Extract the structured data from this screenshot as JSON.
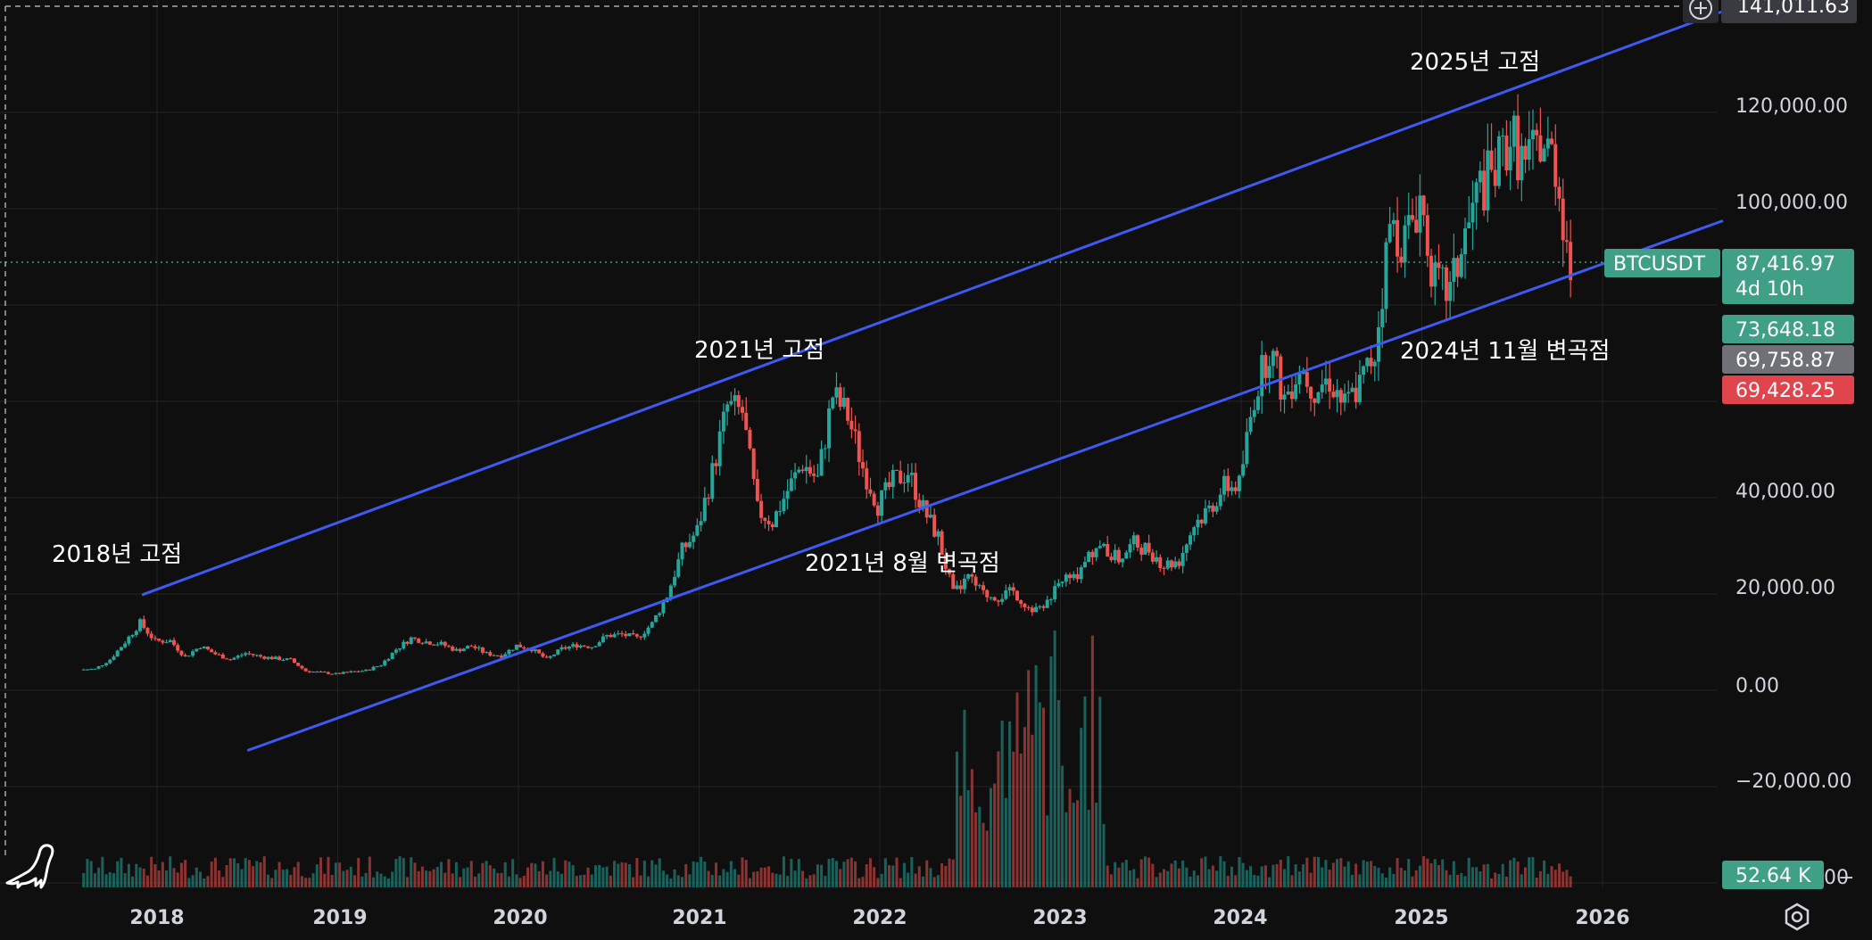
{
  "colors": {
    "background": "#0f0f0f",
    "grid": "#232323",
    "up": "#26a69a",
    "down": "#ef5350",
    "channel": "#3d5af1",
    "price_tag": "#3f9f87",
    "gray_tag": "#6f7176",
    "red_tag": "#e0444d",
    "top_tag": "#3a3b40"
  },
  "icons": {
    "logo": "dinosaur-logo-icon",
    "add": "plus-circle-icon",
    "settings": "hexagon-settings-icon"
  },
  "chart_data": {
    "type": "candlestick",
    "symbol": "BTCUSDT",
    "x_ticks": [
      "2018",
      "2019",
      "2020",
      "2021",
      "2022",
      "2023",
      "2024",
      "2025",
      "2026"
    ],
    "y_ticks": [
      "120,000.00",
      "100,000.00",
      "40,000.00",
      "20,000.00",
      "0.00",
      "−20,000.00",
      "−"
    ],
    "ylim": [
      -40000,
      141011.63
    ],
    "price_tags": {
      "top": "141,011.63",
      "last_symbol": "BTCUSDT",
      "last_price": "87,416.97",
      "countdown": "4d 10h",
      "level_1": "73,648.18",
      "level_2": "69,758.87",
      "level_3": "69,428.25",
      "volume": "52.64 K"
    },
    "annotations": [
      {
        "text": "2018년 고점",
        "date": "2017-12",
        "price": 19800
      },
      {
        "text": "2021년 고점",
        "date": "2021-04",
        "price": 64800
      },
      {
        "text": "2021년 8월 변곡점",
        "date": "2021-08",
        "price": 45000
      },
      {
        "text": "2025년 고점",
        "date": "2025-10",
        "price": 126000
      },
      {
        "text": "2024년 11월 변곡점",
        "date": "2024-11",
        "price": 73000
      }
    ],
    "channel": {
      "upper": [
        {
          "date": "2017-12",
          "price": 19800
        },
        {
          "date": "2026-09",
          "price": 141000
        }
      ],
      "lower": [
        {
          "date": "2018-07",
          "price": -12500
        },
        {
          "date": "2026-09",
          "price": 97500
        }
      ]
    },
    "price_series": [
      [
        "2017-08",
        4300
      ],
      [
        "2017-09",
        4400
      ],
      [
        "2017-10",
        6400
      ],
      [
        "2017-11",
        10000
      ],
      [
        "2017-12",
        14000
      ],
      [
        "2018-01",
        10200
      ],
      [
        "2018-02",
        10300
      ],
      [
        "2018-03",
        6900
      ],
      [
        "2018-04",
        9200
      ],
      [
        "2018-05",
        7500
      ],
      [
        "2018-06",
        6400
      ],
      [
        "2018-07",
        7700
      ],
      [
        "2018-08",
        7000
      ],
      [
        "2018-09",
        6600
      ],
      [
        "2018-10",
        6300
      ],
      [
        "2018-11",
        4000
      ],
      [
        "2018-12",
        3700
      ],
      [
        "2019-01",
        3400
      ],
      [
        "2019-02",
        3800
      ],
      [
        "2019-03",
        4100
      ],
      [
        "2019-04",
        5300
      ],
      [
        "2019-05",
        8500
      ],
      [
        "2019-06",
        10800
      ],
      [
        "2019-07",
        10100
      ],
      [
        "2019-08",
        9600
      ],
      [
        "2019-09",
        8300
      ],
      [
        "2019-10",
        9200
      ],
      [
        "2019-11",
        7600
      ],
      [
        "2019-12",
        7200
      ],
      [
        "2020-01",
        9300
      ],
      [
        "2020-02",
        8600
      ],
      [
        "2020-03",
        6400
      ],
      [
        "2020-04",
        8600
      ],
      [
        "2020-05",
        9400
      ],
      [
        "2020-06",
        9100
      ],
      [
        "2020-07",
        11300
      ],
      [
        "2020-08",
        11600
      ],
      [
        "2020-09",
        10800
      ],
      [
        "2020-10",
        13800
      ],
      [
        "2020-11",
        19700
      ],
      [
        "2020-12",
        29000
      ],
      [
        "2021-01",
        33100
      ],
      [
        "2021-02",
        45200
      ],
      [
        "2021-03",
        58900
      ],
      [
        "2021-04",
        57700
      ],
      [
        "2021-05",
        37300
      ],
      [
        "2021-06",
        35000
      ],
      [
        "2021-07",
        41500
      ],
      [
        "2021-08",
        47100
      ],
      [
        "2021-09",
        43800
      ],
      [
        "2021-10",
        61300
      ],
      [
        "2021-11",
        57000
      ],
      [
        "2021-12",
        46300
      ],
      [
        "2022-01",
        38500
      ],
      [
        "2022-02",
        43200
      ],
      [
        "2022-03",
        45500
      ],
      [
        "2022-04",
        37700
      ],
      [
        "2022-05",
        31800
      ],
      [
        "2022-06",
        19900
      ],
      [
        "2022-07",
        23300
      ],
      [
        "2022-08",
        20000
      ],
      [
        "2022-09",
        19400
      ],
      [
        "2022-10",
        20500
      ],
      [
        "2022-11",
        17200
      ],
      [
        "2022-12",
        16500
      ],
      [
        "2023-01",
        23100
      ],
      [
        "2023-02",
        23100
      ],
      [
        "2023-03",
        28500
      ],
      [
        "2023-04",
        29200
      ],
      [
        "2023-05",
        27200
      ],
      [
        "2023-06",
        30500
      ],
      [
        "2023-07",
        29200
      ],
      [
        "2023-08",
        26000
      ],
      [
        "2023-09",
        27000
      ],
      [
        "2023-10",
        34500
      ],
      [
        "2023-11",
        37700
      ],
      [
        "2023-12",
        42300
      ],
      [
        "2024-01",
        42600
      ],
      [
        "2024-02",
        61200
      ],
      [
        "2024-03",
        71300
      ],
      [
        "2024-04",
        60700
      ],
      [
        "2024-05",
        67500
      ],
      [
        "2024-06",
        62700
      ],
      [
        "2024-07",
        64600
      ],
      [
        "2024-08",
        59000
      ],
      [
        "2024-09",
        63300
      ],
      [
        "2024-10",
        70300
      ],
      [
        "2024-11",
        96400
      ],
      [
        "2024-12",
        93400
      ],
      [
        "2025-01",
        102400
      ],
      [
        "2025-02",
        84300
      ],
      [
        "2025-03",
        82500
      ],
      [
        "2025-04",
        94200
      ],
      [
        "2025-05",
        104600
      ],
      [
        "2025-06",
        107100
      ],
      [
        "2025-07",
        115700
      ],
      [
        "2025-08",
        108200
      ],
      [
        "2025-09",
        114000
      ],
      [
        "2025-10",
        109500
      ],
      [
        "2025-11",
        87417
      ]
    ]
  }
}
